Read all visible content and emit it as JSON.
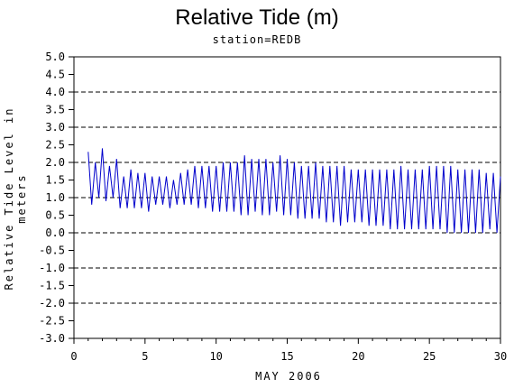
{
  "chart_data": {
    "type": "line",
    "title": "Relative Tide (m)",
    "subtitle": "station=REDB",
    "xlabel": "MAY 2006",
    "ylabel": "Relative Tide Level in meters",
    "xlim": [
      0,
      30
    ],
    "ylim": [
      -3.0,
      5.0
    ],
    "x_ticks": [
      "0",
      "5",
      "10",
      "15",
      "20",
      "25",
      "30"
    ],
    "y_ticks": [
      "5.0",
      "4.5",
      "4.0",
      "3.5",
      "3.0",
      "2.5",
      "2.0",
      "1.5",
      "1.0",
      "0.5",
      "0.0",
      "-0.5",
      "-1.0",
      "-1.5",
      "-2.0",
      "-2.5",
      "-3.0"
    ],
    "grid": "dashed horizontal lines at whole-meter levels",
    "series": [
      {
        "color": "#0000cc",
        "x": [
          1.0,
          1.25,
          1.5,
          1.75,
          2.0,
          2.25,
          2.5,
          2.75,
          3.0,
          3.25,
          3.5,
          3.75,
          4.0,
          4.25,
          4.5,
          4.75,
          5.0,
          5.25,
          5.5,
          5.75,
          6.0,
          6.25,
          6.5,
          6.75,
          7.0,
          7.25,
          7.5,
          7.75,
          8.0,
          8.25,
          8.5,
          8.75,
          9.0,
          9.25,
          9.5,
          9.75,
          10.0,
          10.25,
          10.5,
          10.75,
          11.0,
          11.25,
          11.5,
          11.75,
          12.0,
          12.25,
          12.5,
          12.75,
          13.0,
          13.25,
          13.5,
          13.75,
          14.0,
          14.25,
          14.5,
          14.75,
          15.0,
          15.25,
          15.5,
          15.75,
          16.0,
          16.25,
          16.5,
          16.75,
          17.0,
          17.25,
          17.5,
          17.75,
          18.0,
          18.25,
          18.5,
          18.75,
          19.0,
          19.25,
          19.5,
          19.75,
          20.0,
          20.25,
          20.5,
          20.75,
          21.0,
          21.25,
          21.5,
          21.75,
          22.0,
          22.25,
          22.5,
          22.75,
          23.0,
          23.25,
          23.5,
          23.75,
          24.0,
          24.25,
          24.5,
          24.75,
          25.0,
          25.25,
          25.5,
          25.75,
          26.0,
          26.25,
          26.5,
          26.75,
          27.0,
          27.25,
          27.5,
          27.75,
          28.0,
          28.25,
          28.5,
          28.75,
          29.0,
          29.25,
          29.5,
          29.75,
          30.0
        ],
        "y": [
          2.3,
          0.8,
          2.0,
          1.0,
          2.4,
          0.9,
          1.9,
          1.0,
          2.1,
          0.7,
          1.6,
          0.7,
          1.8,
          0.7,
          1.7,
          0.7,
          1.7,
          0.6,
          1.6,
          0.8,
          1.6,
          0.8,
          1.6,
          0.7,
          1.5,
          0.8,
          1.7,
          0.8,
          1.8,
          0.8,
          1.9,
          0.7,
          1.9,
          0.7,
          1.9,
          0.6,
          1.9,
          0.6,
          2.0,
          0.6,
          2.0,
          0.6,
          2.0,
          0.5,
          2.2,
          0.5,
          2.1,
          0.6,
          2.1,
          0.5,
          2.1,
          0.5,
          2.0,
          0.6,
          2.2,
          0.5,
          2.1,
          0.5,
          2.0,
          0.4,
          1.9,
          0.4,
          1.9,
          0.4,
          2.0,
          0.4,
          1.9,
          0.3,
          1.9,
          0.3,
          1.9,
          0.2,
          1.9,
          0.3,
          1.8,
          0.3,
          1.8,
          0.3,
          1.8,
          0.2,
          1.8,
          0.2,
          1.8,
          0.2,
          1.8,
          0.1,
          1.8,
          0.1,
          1.9,
          0.1,
          1.8,
          0.1,
          1.8,
          0.1,
          1.8,
          0.1,
          1.9,
          0.1,
          1.9,
          0.1,
          1.9,
          0.0,
          1.9,
          0.0,
          1.8,
          0.0,
          1.8,
          0.0,
          1.8,
          0.0,
          1.8,
          0.0,
          1.7,
          0.1,
          1.7,
          0.0,
          1.6
        ]
      }
    ]
  }
}
